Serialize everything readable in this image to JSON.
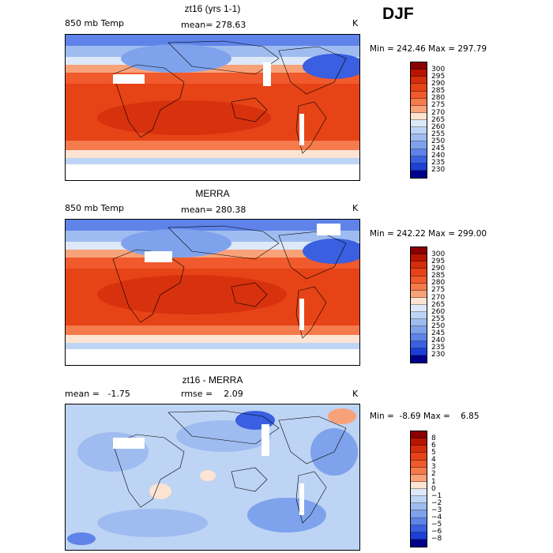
{
  "season": "DJF",
  "panels": [
    {
      "title": "zt16 (yrs 1-1)",
      "left_label": "850 mb Temp",
      "center_label": "mean= 278.63",
      "unit": "K",
      "minmax": "Min = 242.46 Max = 297.79",
      "colorbar_labels": [
        "300",
        "295",
        "290",
        "285",
        "280",
        "275",
        "270",
        "265",
        "260",
        "255",
        "250",
        "245",
        "240",
        "235",
        "230"
      ],
      "colorbar_colors": [
        "#8b0000",
        "#b81400",
        "#d42e0c",
        "#e64317",
        "#f05a2c",
        "#f57a4c",
        "#f8a27a",
        "#fde3d2",
        "#dde8f8",
        "#bed4f4",
        "#9fbcf0",
        "#7fa2ec",
        "#5f83e8",
        "#3a5fe0",
        "#1c3fd4",
        "#00008b"
      ]
    },
    {
      "title": "MERRA",
      "left_label": "850 mb Temp",
      "center_label": "mean= 280.38",
      "unit": "K",
      "minmax": "Min = 242.22 Max = 299.00",
      "colorbar_labels": [
        "300",
        "295",
        "290",
        "285",
        "280",
        "275",
        "270",
        "265",
        "260",
        "255",
        "250",
        "245",
        "240",
        "235",
        "230"
      ],
      "colorbar_colors": [
        "#8b0000",
        "#b81400",
        "#d42e0c",
        "#e64317",
        "#f05a2c",
        "#f57a4c",
        "#f8a27a",
        "#fde3d2",
        "#dde8f8",
        "#bed4f4",
        "#9fbcf0",
        "#7fa2ec",
        "#5f83e8",
        "#3a5fe0",
        "#1c3fd4",
        "#00008b"
      ]
    },
    {
      "title": "zt16 - MERRA",
      "left_label": "mean =   -1.75",
      "center_label": "rmse =    2.09",
      "unit": "K",
      "minmax": "Min =  -8.69 Max =    6.85",
      "colorbar_labels": [
        "8",
        "6",
        "5",
        "4",
        "3",
        "2",
        "1",
        "0",
        "−1",
        "−2",
        "−3",
        "−4",
        "−5",
        "−6",
        "−8"
      ],
      "colorbar_colors": [
        "#8b0000",
        "#b81400",
        "#d42e0c",
        "#e64317",
        "#f05a2c",
        "#f57a4c",
        "#f8a27a",
        "#fde3d2",
        "#dde8f8",
        "#bed4f4",
        "#9fbcf0",
        "#7fa2ec",
        "#5f83e8",
        "#3a5fe0",
        "#1c3fd4",
        "#00008b"
      ]
    }
  ]
}
